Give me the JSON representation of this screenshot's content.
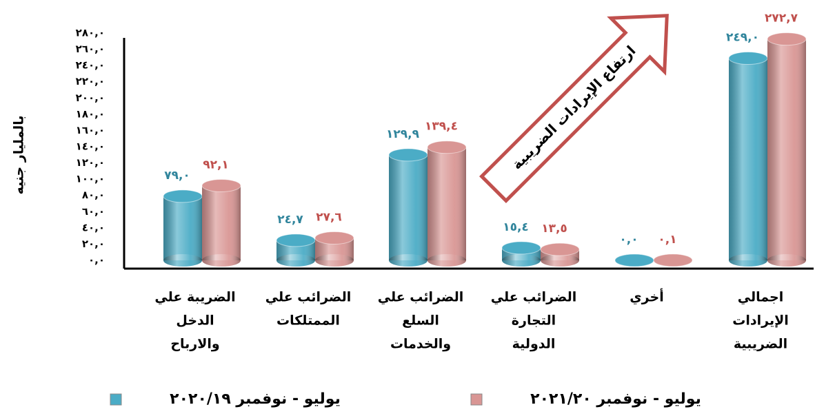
{
  "chart_data": {
    "type": "bar",
    "y_label": "بالمليار جنيه",
    "annotation": "ارتفاع الإيرادات الضريبية",
    "categories": [
      [
        "الضريبة علي",
        "الدخل",
        "والارباح"
      ],
      [
        "الضرائب علي",
        "الممتلكات"
      ],
      [
        "الضرائب علي",
        "السلع",
        "والخدمات"
      ],
      [
        "الضرائب علي",
        "التجارة",
        "الدولية"
      ],
      [
        "أخري"
      ],
      [
        "اجمالي",
        "الإيرادات",
        "الضريبية"
      ]
    ],
    "series": [
      {
        "name": "يوليو - نوفمبر ٢٠٢٠/١٩",
        "color": "#4bacc6",
        "values": [
          79.0,
          24.7,
          129.9,
          15.4,
          0.0,
          249.0
        ],
        "value_labels": [
          "٧٩,٠",
          "٢٤,٧",
          "١٢٩,٩",
          "١٥,٤",
          "٠,٠",
          "٢٤٩,٠"
        ],
        "label_color": "#31859c"
      },
      {
        "name": "يوليو - نوفمبر ٢٠٢١/٢٠",
        "color": "#d99694",
        "values": [
          92.1,
          27.6,
          139.4,
          13.5,
          0.1,
          272.7
        ],
        "value_labels": [
          "٩٢,١",
          "٢٧,٦",
          "١٣٩,٤",
          "١٣,٥",
          "٠,١",
          "٢٧٢,٧"
        ],
        "label_color": "#c0504d"
      }
    ],
    "ylim": [
      0,
      280
    ],
    "yticks": [
      {
        "value": 0,
        "label": "٠,٠"
      },
      {
        "value": 20,
        "label": "٢٠,٠"
      },
      {
        "value": 40,
        "label": "٤٠,٠"
      },
      {
        "value": 60,
        "label": "٦٠,٠"
      },
      {
        "value": 80,
        "label": "٨٠,٠"
      },
      {
        "value": 100,
        "label": "١٠٠,٠"
      },
      {
        "value": 120,
        "label": "١٢٠,٠"
      },
      {
        "value": 140,
        "label": "١٤٠,٠"
      },
      {
        "value": 160,
        "label": "١٦٠,٠"
      },
      {
        "value": 180,
        "label": "١٨٠,٠"
      },
      {
        "value": 200,
        "label": "٢٠٠,٠"
      },
      {
        "value": 220,
        "label": "٢٢٠,٠"
      },
      {
        "value": 240,
        "label": "٢٤٠,٠"
      },
      {
        "value": 260,
        "label": "٢٦٠,٠"
      },
      {
        "value": 280,
        "label": "٢٨٠,٠"
      }
    ],
    "legend": "bottom"
  }
}
